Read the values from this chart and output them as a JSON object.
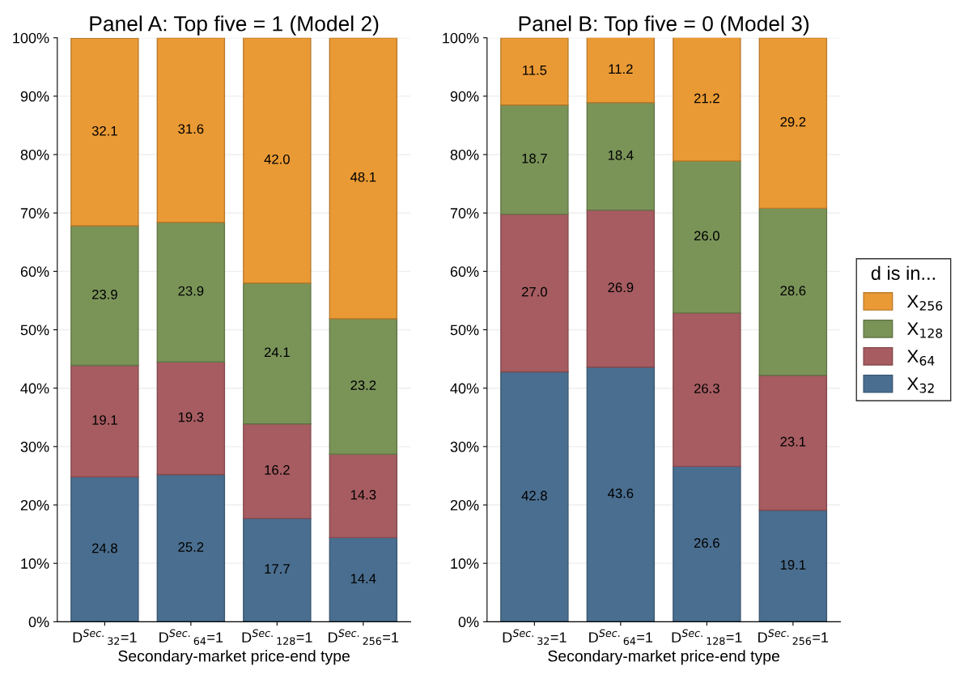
{
  "chart_data": [
    {
      "type": "bar",
      "stacked": true,
      "title": "Panel A: Top five = 1 (Model 2)",
      "xlabel": "Secondary-market price-end type",
      "categories": [
        "D$^{Sec.}$$_{32}$=1",
        "D$^{Sec.}$$_{64}$=1",
        "D$^{Sec.}$$_{128}$=1",
        "D$^{Sec.}$$_{256}$=1"
      ],
      "series": [
        {
          "color": "#4a6e8f",
          "values": [
            24.8,
            25.2,
            17.7,
            14.4
          ],
          "value_labels": [
            "24.8",
            "25.2",
            "17.7",
            "14.4"
          ]
        },
        {
          "color": "#a65c61",
          "values": [
            19.1,
            19.3,
            16.2,
            14.3
          ],
          "value_labels": [
            "19.1",
            "19.3",
            "16.2",
            "14.3"
          ]
        },
        {
          "color": "#7a9458",
          "values": [
            23.9,
            23.9,
            24.1,
            23.2
          ],
          "value_labels": [
            "23.9",
            "23.9",
            "24.1",
            "23.2"
          ]
        },
        {
          "color": "#ea9a35",
          "values": [
            32.1,
            31.6,
            42.0,
            48.1
          ],
          "value_labels": [
            "32.1",
            "31.6",
            "42.0",
            "48.1"
          ]
        }
      ],
      "ylim": [
        0,
        100
      ],
      "yticks": [
        {
          "value": 0,
          "label": "0%"
        },
        {
          "value": 10,
          "label": "10%"
        },
        {
          "value": 20,
          "label": "20%"
        },
        {
          "value": 30,
          "label": "30%"
        },
        {
          "value": 40,
          "label": "40%"
        },
        {
          "value": 50,
          "label": "50%"
        },
        {
          "value": 60,
          "label": "60%"
        },
        {
          "value": 70,
          "label": "70%"
        },
        {
          "value": 80,
          "label": "80%"
        },
        {
          "value": 90,
          "label": "90%"
        },
        {
          "value": 100,
          "label": "100%"
        }
      ],
      "grid": "y"
    },
    {
      "type": "bar",
      "stacked": true,
      "title": "Panel B: Top five = 0 (Model 3)",
      "xlabel": "Secondary-market price-end type",
      "categories": [
        "D$^{Sec.}$$_{32}$=1",
        "D$^{Sec.}$$_{64}$=1",
        "D$^{Sec.}$$_{128}$=1",
        "D$^{Sec.}$$_{256}$=1"
      ],
      "series": [
        {
          "name": "X$_{32}$",
          "color": "#4a6e8f",
          "values": [
            42.8,
            43.6,
            26.6,
            19.1
          ],
          "value_labels": [
            "42.8",
            "43.6",
            "26.6",
            "19.1"
          ]
        },
        {
          "name": "X$_{64}$",
          "color": "#a65c61",
          "values": [
            27.0,
            26.9,
            26.3,
            23.1
          ],
          "value_labels": [
            "27.0",
            "26.9",
            "26.3",
            "23.1"
          ]
        },
        {
          "name": "X$_{128}$",
          "color": "#7a9458",
          "values": [
            18.7,
            18.4,
            26.0,
            28.6
          ],
          "value_labels": [
            "18.7",
            "18.4",
            "26.0",
            "28.6"
          ]
        },
        {
          "name": "X$_{256}$",
          "color": "#ea9a35",
          "values": [
            11.5,
            11.2,
            21.2,
            29.2
          ],
          "value_labels": [
            "11.5",
            "11.2",
            "21.2",
            "29.2"
          ]
        }
      ],
      "ylim": [
        0,
        100
      ],
      "yticks": [
        {
          "value": 0,
          "label": "0%"
        },
        {
          "value": 10,
          "label": "10%"
        },
        {
          "value": 20,
          "label": "20%"
        },
        {
          "value": 30,
          "label": "30%"
        },
        {
          "value": 40,
          "label": "40%"
        },
        {
          "value": 50,
          "label": "50%"
        },
        {
          "value": 60,
          "label": "60%"
        },
        {
          "value": 70,
          "label": "70%"
        },
        {
          "value": 80,
          "label": "80%"
        },
        {
          "value": 90,
          "label": "90%"
        },
        {
          "value": 100,
          "label": "100%"
        }
      ],
      "grid": "y",
      "legend": "right",
      "legend_title": "d is in..."
    }
  ]
}
